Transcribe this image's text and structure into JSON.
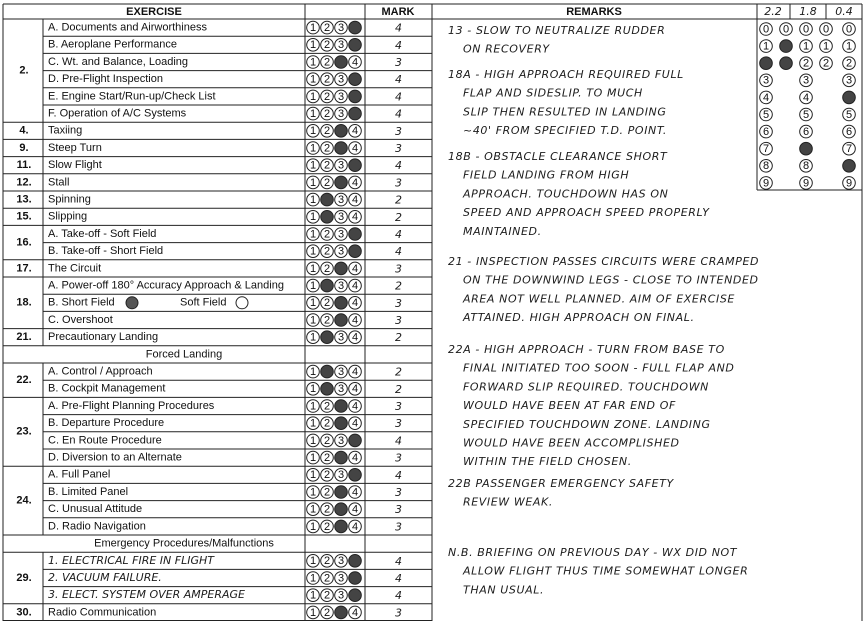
{
  "header": {
    "exercise": "EXERCISE",
    "mark": "MARK",
    "remarks": "REMARKS",
    "scores": [
      "2.2",
      "1.8",
      "0.4"
    ]
  },
  "bubble_digits": [
    "0",
    "1",
    "2",
    "3",
    "4",
    "5",
    "6",
    "7",
    "8",
    "9"
  ],
  "rows": [
    {
      "number": "2.",
      "items": [
        {
          "label": "A. Documents and Airworthiness",
          "mark": 4
        },
        {
          "label": "B. Aeroplane Performance",
          "mark": 4
        },
        {
          "label": "C. Wt. and Balance, Loading",
          "mark": 3
        },
        {
          "label": "D. Pre-Flight Inspection",
          "mark": 4
        },
        {
          "label": "E. Engine Start/Run-up/Check List",
          "mark": 4
        },
        {
          "label": "F. Operation of A/C Systems",
          "mark": 4
        }
      ]
    },
    {
      "number": "4.",
      "items": [
        {
          "label": "Taxiing",
          "mark": 3
        }
      ]
    },
    {
      "number": "9.",
      "items": [
        {
          "label": "Steep Turn",
          "mark": 3
        }
      ]
    },
    {
      "number": "11.",
      "items": [
        {
          "label": "Slow Flight",
          "mark": 4
        }
      ]
    },
    {
      "number": "12.",
      "items": [
        {
          "label": "Stall",
          "mark": 3
        }
      ]
    },
    {
      "number": "13.",
      "items": [
        {
          "label": "Spinning",
          "mark": 2
        }
      ]
    },
    {
      "number": "15.",
      "items": [
        {
          "label": "Slipping",
          "mark": 2
        }
      ]
    },
    {
      "number": "16.",
      "items": [
        {
          "label": "A. Take-off - Soft Field",
          "mark": 4
        },
        {
          "label": "B. Take-off - Short Field",
          "mark": 4
        }
      ]
    },
    {
      "number": "17.",
      "items": [
        {
          "label": "The Circuit",
          "mark": 3
        }
      ]
    },
    {
      "number": "18.",
      "items": [
        {
          "label": "A. Power-off 180° Accuracy Approach & Landing",
          "mark": 2
        },
        {
          "label": "B. Short Field",
          "label2": "Soft Field",
          "mark": 3
        },
        {
          "label": "C. Overshoot",
          "mark": 3
        }
      ]
    },
    {
      "number": "21.",
      "items": [
        {
          "label": "Precautionary Landing",
          "mark": 2
        }
      ]
    },
    {
      "section": "Forced Landing"
    },
    {
      "number": "22.",
      "items": [
        {
          "label": "A. Control / Approach",
          "mark": 2
        },
        {
          "label": "B. Cockpit Management",
          "mark": 2
        }
      ]
    },
    {
      "number": "23.",
      "items": [
        {
          "label": "A. Pre-Flight Planning Procedures",
          "mark": 3
        },
        {
          "label": "B. Departure Procedure",
          "mark": 3
        },
        {
          "label": "C. En Route Procedure",
          "mark": 4
        },
        {
          "label": "D. Diversion to an Alternate",
          "mark": 3
        }
      ]
    },
    {
      "number": "24.",
      "items": [
        {
          "label": "A. Full Panel",
          "mark": 4
        },
        {
          "label": "B. Limited Panel",
          "mark": 3
        },
        {
          "label": "C. Unusual Attitude",
          "mark": 3
        },
        {
          "label": "D. Radio Navigation",
          "mark": 3
        }
      ]
    },
    {
      "section": "Emergency Procedures/Malfunctions"
    },
    {
      "number": "29.",
      "items": [
        {
          "label": "1. ELECTRICAL FIRE IN FLIGHT",
          "mark": 4,
          "handwritten": true
        },
        {
          "label": "2. VACUUM FAILURE.",
          "mark": 4,
          "handwritten": true
        },
        {
          "label": "3. ELECT. SYSTEM OVER AMPERAGE",
          "mark": 4,
          "handwritten": true
        }
      ]
    },
    {
      "number": "30.",
      "items": [
        {
          "label": "Radio Communication",
          "mark": 3
        }
      ]
    }
  ],
  "remarks": [
    [
      "13 - SLOW TO NEUTRALIZE RUDDER",
      "ON RECOVERY"
    ],
    [
      "18A - HIGH APPROACH REQUIRED FULL",
      "FLAP AND SIDESLIP. TO MUCH",
      "SLIP THEN RESULTED IN LANDING",
      "~40' FROM SPECIFIED T.D. POINT."
    ],
    [
      "18B - OBSTACLE CLEARANCE SHORT",
      "FIELD LANDING FROM HIGH",
      "APPROACH. TOUCHDOWN HAS ON",
      "SPEED AND APPROACH SPEED PROPERLY",
      "MAINTAINED."
    ],
    [
      "21 - INSPECTION PASSES CIRCUITS WERE CRAMPED",
      "ON THE DOWNWIND LEGS - CLOSE TO INTENDED",
      "AREA NOT WELL PLANNED. AIM OF EXERCISE",
      "ATTAINED. HIGH APPROACH ON FINAL."
    ],
    [
      "22A - HIGH APPROACH - TURN FROM BASE TO",
      "FINAL INITIATED TOO SOON - FULL FLAP AND",
      "FORWARD SLIP REQUIRED. TOUCHDOWN",
      "WOULD HAVE BEEN AT FAR END OF",
      "SPECIFIED TOUCHDOWN ZONE. LANDING",
      "WOULD HAVE BEEN ACCOMPLISHED",
      "WITHIN THE FIELD CHOSEN."
    ],
    [
      "22B PASSENGER EMERGENCY SAFETY",
      "REVIEW WEAK."
    ],
    [
      "N.B. BRIEFING ON PREVIOUS DAY - WX DID NOT",
      "ALLOW FLIGHT THUS TIME SOMEWHAT LONGER",
      "THAN USUAL."
    ]
  ]
}
